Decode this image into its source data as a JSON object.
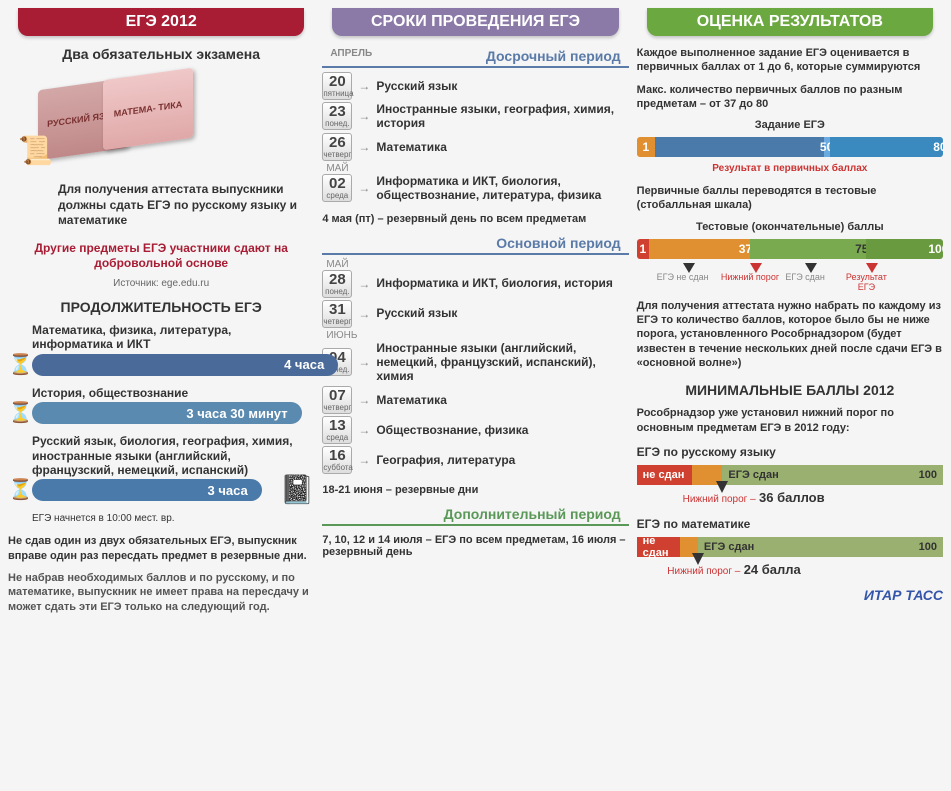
{
  "col1": {
    "header": "ЕГЭ 2012",
    "subtitle": "Два обязательных экзамена",
    "book1": "РУССКИЙ ЯЗЫК",
    "book2": "МАТЕМА-\nТИКА",
    "info": "Для получения аттестата выпускники должны сдать ЕГЭ по русскому языку и математике",
    "other": "Другие предметы ЕГЭ участники сдают на добровольной основе",
    "source": "Источник: ege.edu.ru",
    "duration_title": "ПРОДОЛЖИТЕЛЬНОСТЬ ЕГЭ",
    "durations": [
      {
        "label": "Математика, физика, литература, информатика и ИКТ",
        "time": "4 часа",
        "color": "#4a6a9a",
        "width": "100%"
      },
      {
        "label": "История, обществознание",
        "time": "3 часа 30 минут",
        "color": "#5a8ab0",
        "width": "88%"
      },
      {
        "label": "Русский язык, биология, география, химия, иностранные языки (английский, французский, немецкий, испанский)",
        "time": "3 часа",
        "color": "#4a7aaa",
        "width": "75%"
      }
    ],
    "start_time": "ЕГЭ начнется в 10:00 мест. вр.",
    "bottom1": "Не сдав один из двух обязательных ЕГЭ, выпускник вправе один раз пересдать предмет в резервные дни.",
    "bottom2": "Не набрав необходимых баллов и по русскому, и по математике, выпускник не имеет права на пересдачу и может сдать эти ЕГЭ только на следующий год."
  },
  "col2": {
    "header": "СРОКИ ПРОВЕДЕНИЯ ЕГЭ",
    "period1": "Досрочный период",
    "period2": "Основной период",
    "period3": "Дополнительный период",
    "month_apr": "АПРЕЛЬ",
    "month_may": "МАЙ",
    "month_jun": "ИЮНЬ",
    "dates1": [
      {
        "num": "20",
        "day": "пятница",
        "subj": "Русский язык"
      },
      {
        "num": "23",
        "day": "понед.",
        "subj": "Иностранные языки, география, химия, история"
      },
      {
        "num": "26",
        "day": "четверг",
        "subj": "Математика"
      },
      {
        "num": "02",
        "day": "среда",
        "subj": "Информатика и ИКТ, биология, обществознание, литература, физика",
        "month": "МАЙ"
      }
    ],
    "reserve1": "4 мая (пт) – резервный день по всем предметам",
    "dates2": [
      {
        "num": "28",
        "day": "понед.",
        "subj": "Информатика и ИКТ, биология, история",
        "month": "МАЙ"
      },
      {
        "num": "31",
        "day": "четверг",
        "subj": "Русский язык"
      },
      {
        "num": "04",
        "day": "понед.",
        "subj": "Иностранные языки (английский, немецкий, французский, испанский), химия",
        "month": "ИЮНЬ"
      },
      {
        "num": "07",
        "day": "четверг",
        "subj": "Математика"
      },
      {
        "num": "13",
        "day": "среда",
        "subj": "Обществознание, физика"
      },
      {
        "num": "16",
        "day": "суббота",
        "subj": "География, литература"
      }
    ],
    "reserve2": "18-21 июня – резервные дни",
    "extra": "7, 10, 12 и 14 июля – ЕГЭ по всем предметам, 16 июля – резервный день"
  },
  "col3": {
    "header": "ОЦЕНКА РЕЗУЛЬТАТОВ",
    "text1": "Каждое выполненное задание ЕГЭ оценивается в первичных баллах от 1 до 6, которые суммируются",
    "text2": "Макс. количество первичных баллов по разным предметам – от 37 до 80",
    "bar1_label": "Задание ЕГЭ",
    "bar1": {
      "segs": [
        {
          "val": "1",
          "color": "#e09030",
          "pct": 6
        },
        {
          "val": "",
          "color": "#4a7aaa",
          "pct": 55
        },
        {
          "val": "50",
          "color": "#6aaae0",
          "pct": 2,
          "text_color": "#fff"
        },
        {
          "val": "",
          "color": "#3a8ac0",
          "pct": 35
        },
        {
          "val": "80",
          "color": "#3a8ac0",
          "pct": 2
        }
      ]
    },
    "result1": "Результат в первичных баллах",
    "text3": "Первичные баллы переводятся в тестовые (стобалльная шкала)",
    "bar2_label": "Тестовые (окончательные) баллы",
    "bar2": {
      "segs": [
        {
          "val": "1",
          "color": "#d04030",
          "pct": 4
        },
        {
          "val": "",
          "color": "#e09030",
          "pct": 30
        },
        {
          "val": "37",
          "color": "#e09030",
          "pct": 3
        },
        {
          "val": "",
          "color": "#7aaa50",
          "pct": 35
        },
        {
          "val": "75",
          "color": "#7aaa50",
          "pct": 3,
          "text_color": "#333"
        },
        {
          "val": "",
          "color": "#6a9a40",
          "pct": 22
        },
        {
          "val": "100",
          "color": "#6a9a40",
          "pct": 3
        }
      ]
    },
    "markers": [
      {
        "pos": 15,
        "text": "ЕГЭ не сдан",
        "color": "#888"
      },
      {
        "pos": 37,
        "text": "Нижний порог",
        "color": "#cc3333"
      },
      {
        "pos": 55,
        "text": "ЕГЭ сдан",
        "color": "#888"
      },
      {
        "pos": 75,
        "text": "Результат ЕГЭ",
        "color": "#cc3333"
      }
    ],
    "explain": "Для получения аттестата нужно набрать по каждому из ЕГЭ то количество баллов, которое было бы не ниже порога, установленного Рособрнадзором (будет известен в течение нескольких дней после сдачи ЕГЭ в «основной волне»)",
    "min_title": "МИНИМАЛЬНЫЕ БАЛЛЫ 2012",
    "min_sub": "Рособрнадзор уже установил нижний порог по основным предметам ЕГЭ в 2012 году:",
    "subj1": {
      "name": "ЕГЭ по русскому языку",
      "fail": "не сдан",
      "pass": "ЕГЭ сдан",
      "max": "100",
      "min_label": "Нижний порог –",
      "min": "36 баллов",
      "fail_pct": 28,
      "fail_color": "#d04030",
      "mid_color": "#e09030",
      "pass_color": "#9ab070"
    },
    "subj2": {
      "name": "ЕГЭ по математике",
      "fail": "не сдан",
      "pass": "ЕГЭ сдан",
      "max": "100",
      "min_label": "Нижний порог –",
      "min": "24 балла",
      "fail_pct": 20,
      "fail_color": "#d04030",
      "mid_color": "#e09030",
      "pass_color": "#9ab070"
    },
    "logo": "ИТАР ТАСС"
  }
}
